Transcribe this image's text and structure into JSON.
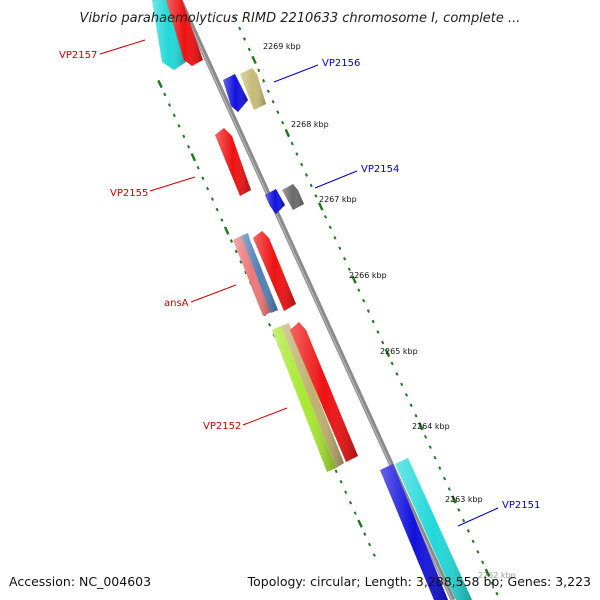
{
  "title": "Vibrio parahaemolyticus RIMD 2210633 chromosome I, complete ...",
  "footer": {
    "accession": "Accession: NC_004603",
    "summary": "Topology: circular; Length: 3,288,558 bp; Genes: 3,223"
  },
  "colors": {
    "backbone": "#8a8a8a",
    "tick": "#1a7a1a",
    "label_red": "#cc0000",
    "label_blue": "#0000bb"
  },
  "kbp_ticks": [
    "2269 kbp",
    "2268 kbp",
    "2267 kbp",
    "2266 kbp",
    "2265 kbp",
    "2264 kbp",
    "2263 kbp",
    "2262 kbp"
  ],
  "gene_labels": {
    "vp2157": "VP2157",
    "vp2156": "VP2156",
    "vp2155": "VP2155",
    "vp2154": "VP2154",
    "ansA": "ansA",
    "vp2152": "VP2152",
    "vp2151": "VP2151"
  },
  "genes": [
    {
      "id": "vp2157-cyan",
      "color": "#22d8d8",
      "strand": "-"
    },
    {
      "id": "vp2157-red",
      "color": "#ee1111",
      "strand": "-"
    },
    {
      "id": "vp2156-blue",
      "color": "#1111dd",
      "strand": "-"
    },
    {
      "id": "vp2156-khaki",
      "color": "#c8bc78",
      "strand": "+"
    },
    {
      "id": "vp2155",
      "color": "#ee1111",
      "strand": "+"
    },
    {
      "id": "vp2154-blue",
      "color": "#1111dd",
      "strand": "-"
    },
    {
      "id": "vp2154-gray",
      "color": "#6a6a6a",
      "strand": "+"
    },
    {
      "id": "ansA-pink",
      "color": "#ee7777",
      "strand": "+"
    },
    {
      "id": "ansA-steel",
      "color": "#4f7fb5",
      "strand": "+"
    },
    {
      "id": "ansA-red",
      "color": "#ee1111",
      "strand": "+"
    },
    {
      "id": "vp2152-lime",
      "color": "#a8e830",
      "strand": "+"
    },
    {
      "id": "vp2152-khaki",
      "color": "#c0b070",
      "strand": "+"
    },
    {
      "id": "vp2152-red",
      "color": "#ee1111",
      "strand": "+"
    },
    {
      "id": "vp2151-blue",
      "color": "#1111dd",
      "strand": "-"
    },
    {
      "id": "vp2151-cyan",
      "color": "#22d8d8",
      "strand": "-"
    }
  ]
}
